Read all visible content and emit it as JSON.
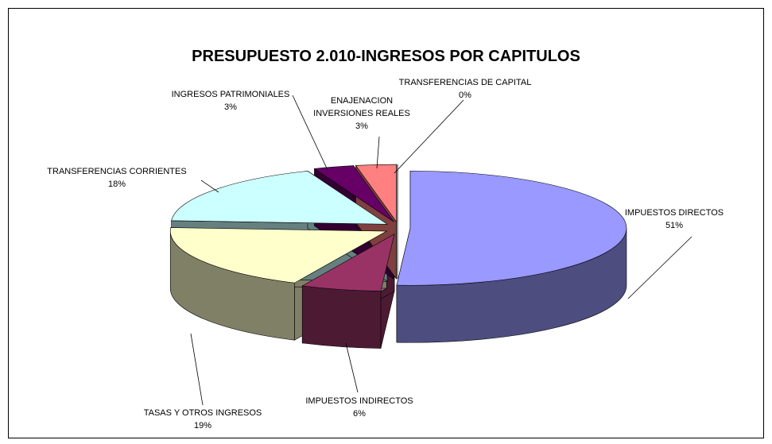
{
  "chart_data": {
    "type": "pie3d",
    "title": "PRESUPUESTO 2.010-INGRESOS POR CAPITULOS",
    "categories": [
      "IMPUESTOS DIRECTOS",
      "IMPUESTOS INDIRECTOS",
      "TASAS Y OTROS INGRESOS",
      "TRANSFERENCIAS CORRIENTES",
      "INGRESOS PATRIMONIALES",
      "ENAJENACION INVERSIONES REALES",
      "TRANSFERENCIAS DE CAPITAL"
    ],
    "values": [
      51,
      6,
      19,
      18,
      3,
      3,
      0
    ],
    "value_labels": [
      "51%",
      "6%",
      "19%",
      "18%",
      "3%",
      "3%",
      "0%"
    ],
    "colors": [
      "#9999ff",
      "#993366",
      "#ffffcc",
      "#ccffff",
      "#660066",
      "#ff8080",
      "#0066cc"
    ]
  }
}
